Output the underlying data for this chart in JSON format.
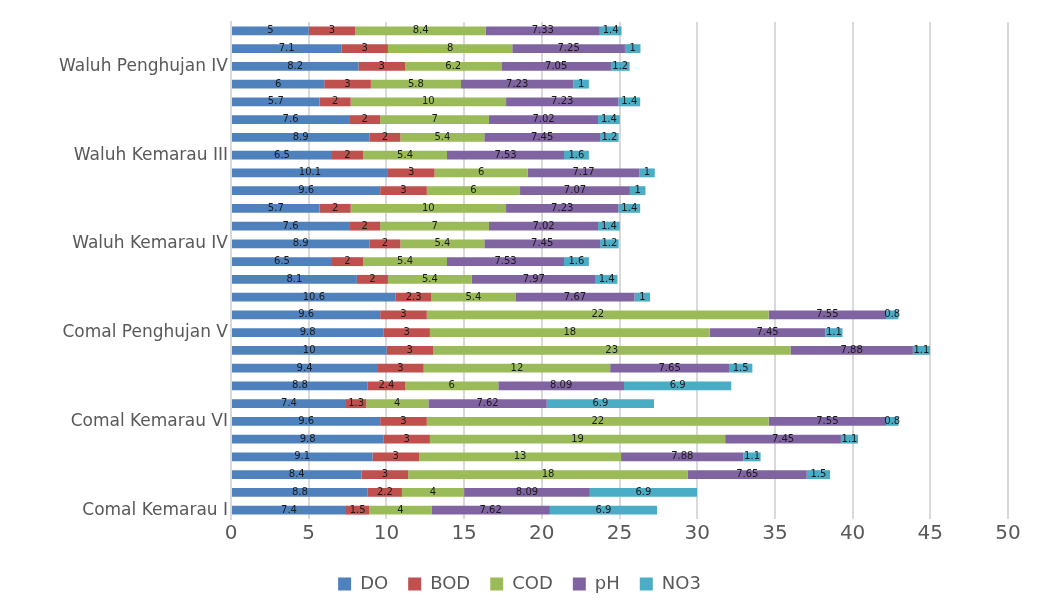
{
  "chart_data": {
    "type": "bar",
    "orientation": "horizontal",
    "stacked": true,
    "categories": [
      null,
      null,
      "Waluh Penghujan IV",
      null,
      null,
      null,
      null,
      "Waluh Kemarau III",
      null,
      null,
      null,
      null,
      "Waluh Kemarau IV",
      null,
      null,
      null,
      null,
      "Comal Penghujan V",
      null,
      null,
      null,
      null,
      "Comal Kemarau VI",
      null,
      null,
      null,
      null,
      "Comal Kemarau I"
    ],
    "series": [
      {
        "name": "DO",
        "color": "#4f81bd",
        "values": [
          5,
          7.1,
          8.2,
          6,
          5.7,
          7.6,
          8.9,
          6.5,
          10.1,
          9.6,
          5.7,
          7.6,
          8.9,
          6.5,
          8.1,
          10.6,
          9.6,
          9.8,
          10,
          9.4,
          8.8,
          7.4,
          9.6,
          9.8,
          9.1,
          8.4,
          8.8,
          7.4
        ]
      },
      {
        "name": "BOD",
        "color": "#c0504d",
        "values": [
          3,
          3,
          3,
          3,
          2,
          2,
          2,
          2,
          3,
          3,
          2,
          2,
          2,
          2,
          2,
          2.3,
          3,
          3,
          3,
          3,
          2.4,
          1.3,
          3,
          3,
          3,
          3,
          2.2,
          1.5
        ]
      },
      {
        "name": "COD",
        "color": "#9bbb59",
        "values": [
          8.4,
          8,
          6.2,
          5.8,
          10,
          7,
          5.4,
          5.4,
          6,
          6,
          10,
          7,
          5.4,
          5.4,
          5.4,
          5.4,
          22,
          18,
          23,
          12,
          6,
          4,
          22,
          19,
          13,
          18,
          4,
          4
        ]
      },
      {
        "name": "pH",
        "color": "#8064a2",
        "values": [
          7.33,
          7.25,
          7.05,
          7.23,
          7.23,
          7.02,
          7.45,
          7.53,
          7.17,
          7.07,
          7.23,
          7.02,
          7.45,
          7.53,
          7.97,
          7.67,
          7.55,
          7.45,
          7.88,
          7.65,
          8.09,
          7.62,
          7.55,
          7.45,
          7.88,
          7.65,
          8.09,
          7.62
        ]
      },
      {
        "name": "NO3",
        "color": "#4bacc6",
        "values": [
          1.4,
          1,
          1.2,
          1,
          1.4,
          1.4,
          1.2,
          1.6,
          1,
          1,
          1.4,
          1.4,
          1.2,
          1.6,
          1.4,
          1,
          0.8,
          1.1,
          1.1,
          1.5,
          6.9,
          6.9,
          0.8,
          1.1,
          1.1,
          1.5,
          6.9,
          6.9
        ]
      }
    ],
    "xlim": [
      0,
      50
    ],
    "xticks": [
      0,
      5,
      10,
      15,
      20,
      25,
      30,
      35,
      40,
      45,
      50
    ],
    "grid": "x",
    "legend": "bottom",
    "data_labels": true
  }
}
